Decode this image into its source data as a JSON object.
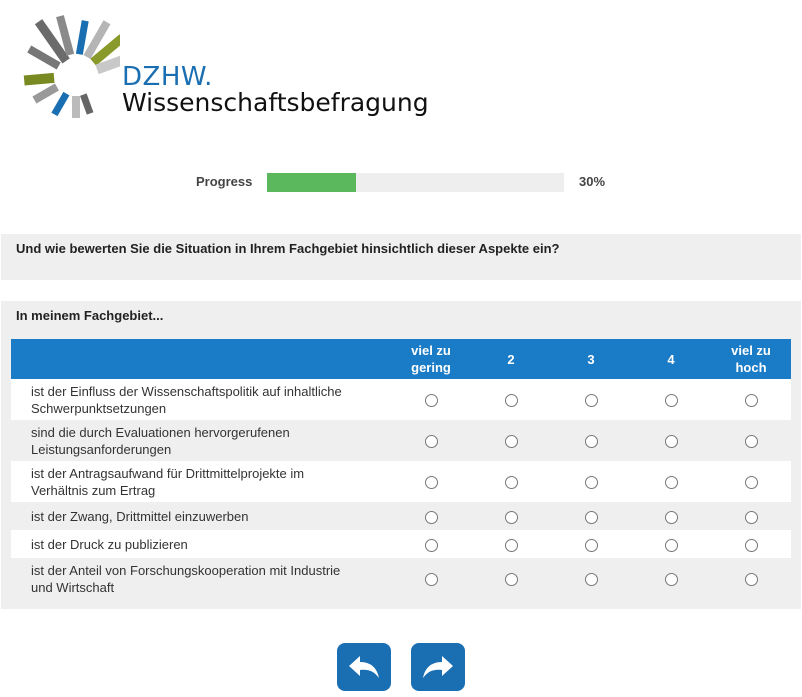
{
  "logo": {
    "brand": "DZHW.",
    "subtitle": "Wissenschaftsbefragung"
  },
  "progress": {
    "label": "Progress",
    "value_percent": 30,
    "display": "30%"
  },
  "question": {
    "text": "Und wie bewerten Sie die Situation in Ihrem Fachgebiet hinsichtlich dieser Aspekte ein?"
  },
  "matrix": {
    "heading": "In meinem Fachgebiet...",
    "columns": [
      {
        "line1": "viel zu",
        "line2": "gering"
      },
      {
        "line1": "2",
        "line2": ""
      },
      {
        "line1": "3",
        "line2": ""
      },
      {
        "line1": "4",
        "line2": ""
      },
      {
        "line1": "viel zu",
        "line2": "hoch"
      }
    ],
    "rows": [
      {
        "line1": "ist der Einfluss der Wissenschaftspolitik auf inhaltliche",
        "line2": "Schwerpunktsetzungen"
      },
      {
        "line1": "sind die durch Evaluationen hervorgerufenen",
        "line2": "Leistungsanforderungen"
      },
      {
        "line1": "ist der Antragsaufwand für Drittmittelprojekte im",
        "line2": "Verhältnis zum Ertrag"
      },
      {
        "line1": "ist der Zwang, Drittmittel einzuwerben",
        "line2": ""
      },
      {
        "line1": "ist der Druck zu publizieren",
        "line2": ""
      },
      {
        "line1": "ist der Anteil von Forschungskooperation mit Industrie",
        "line2": "und Wirtschaft"
      }
    ]
  },
  "navigation": {
    "back_icon": "arrow-back-icon",
    "next_icon": "arrow-forward-icon"
  },
  "colors": {
    "accent": "#1a7bc6",
    "progress_fill": "#5cb85c",
    "panel_bg": "#efefef"
  }
}
